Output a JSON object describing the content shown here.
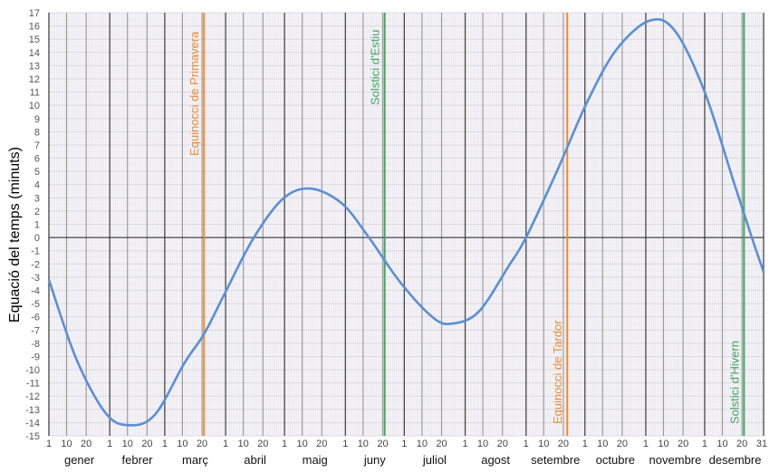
{
  "chart_data": {
    "type": "line",
    "title": "",
    "xlabel": "",
    "ylabel": "Equació del temps (minuts)",
    "ylim": [
      -15,
      17
    ],
    "yticks": [
      -15,
      -14,
      -13,
      -12,
      -11,
      -10,
      -9,
      -8,
      -7,
      -6,
      -5,
      -4,
      -3,
      -2,
      -1,
      0,
      1,
      2,
      3,
      4,
      5,
      6,
      7,
      8,
      9,
      10,
      11,
      12,
      13,
      14,
      15,
      16,
      17
    ],
    "grid": true,
    "months": [
      "gener",
      "febrer",
      "març",
      "abril",
      "maig",
      "juny",
      "juliol",
      "agost",
      "setembre",
      "octubre",
      "novembre",
      "desembre"
    ],
    "month_days": [
      31,
      28,
      31,
      30,
      31,
      30,
      31,
      31,
      30,
      31,
      30,
      31
    ],
    "day_ticks": [
      "1",
      "10",
      "20"
    ],
    "last_tick": "31",
    "series": [
      {
        "name": "Equació del temps",
        "color": "#5b8fd6",
        "x_day_of_year": [
          1,
          15,
          30,
          42,
          55,
          70,
          80,
          90,
          105,
          120,
          134,
          150,
          164,
          180,
          197,
          207,
          220,
          235,
          244,
          260,
          275,
          290,
          307,
          320,
          335,
          350,
          359,
          365
        ],
        "values": [
          -3.2,
          -9.2,
          -13.3,
          -14.2,
          -13.4,
          -9.5,
          -7.3,
          -4.4,
          -0.1,
          2.9,
          3.7,
          2.6,
          0.0,
          -3.4,
          -6.1,
          -6.5,
          -5.6,
          -2.2,
          0.0,
          5.1,
          10.2,
          14.2,
          16.4,
          15.6,
          11.0,
          4.1,
          0.0,
          -2.6
        ]
      }
    ],
    "markers": [
      {
        "label": "Equinocci de Primavera",
        "day": 80,
        "color": "#ed8b30"
      },
      {
        "label": "Solstici d'Estiu",
        "day": 172,
        "color": "#3fa55f"
      },
      {
        "label": "Equinocci de Tardor",
        "day": 265,
        "color": "#ed8b30"
      },
      {
        "label": "Solstici d'Hivern",
        "day": 355,
        "color": "#3fa55f"
      }
    ]
  }
}
